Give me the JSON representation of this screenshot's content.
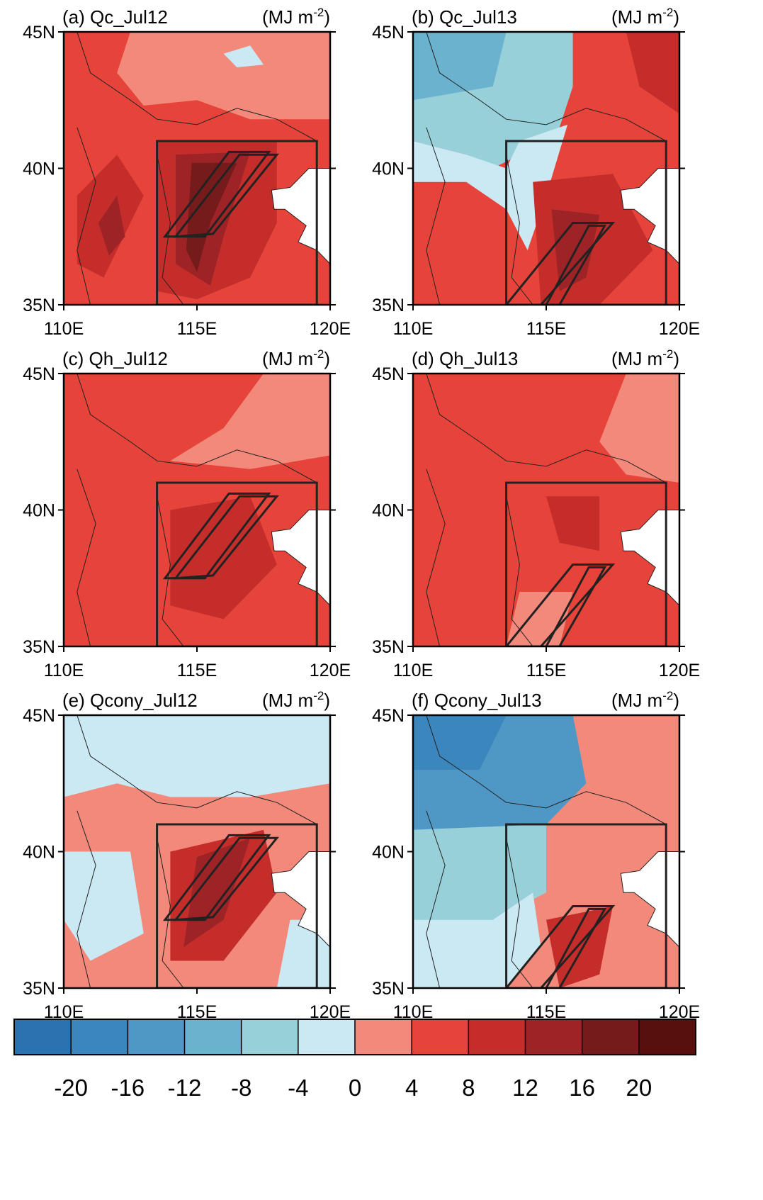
{
  "panels": [
    {
      "label": "(a) Qc_Jul12"
    },
    {
      "label": "(b) Qc_Jul13"
    },
    {
      "label": "(c) Qh_Jul12"
    },
    {
      "label": "(d) Qh_Jul13"
    },
    {
      "label": "(e) Qcony_Jul12"
    },
    {
      "label": "(f) Qcony_Jul13"
    }
  ],
  "units_prefix": "(MJ m",
  "units_exponent": "-2",
  "units_suffix": ")",
  "xlim": [
    110,
    120
  ],
  "ylim": [
    35,
    45
  ],
  "lon_ticks": [
    {
      "value": 110,
      "label": "110E"
    },
    {
      "value": 115,
      "label": "115E"
    },
    {
      "value": 120,
      "label": "120E"
    }
  ],
  "lat_ticks": [
    {
      "value": 45,
      "label": "45N"
    },
    {
      "value": 40,
      "label": "40N"
    },
    {
      "value": 35,
      "label": "35N"
    }
  ],
  "colorbar": {
    "lim": [
      -24,
      24
    ],
    "ticks": [
      -20,
      -16,
      -12,
      -8,
      -4,
      0,
      4,
      8,
      12,
      16,
      20
    ],
    "colors": [
      "#2b72b1",
      "#3b87bd",
      "#4f98c5",
      "#6bb2cf",
      "#98d0da",
      "#cbe9f3",
      "#f3897b",
      "#e6443a",
      "#c52d2b",
      "#9d2326",
      "#751b1c",
      "#58100f"
    ]
  }
}
